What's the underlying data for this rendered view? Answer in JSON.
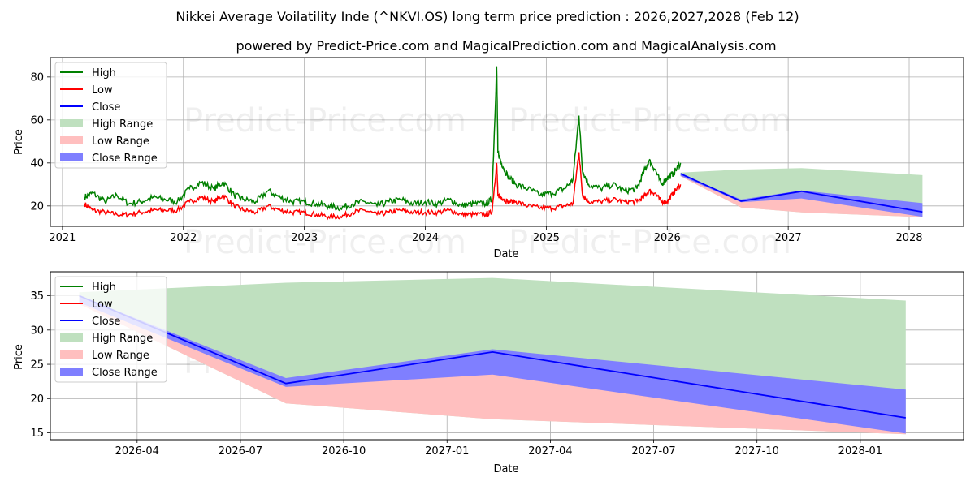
{
  "title": "Nikkei Average Voilatility Inde (^NKVI.OS) long term price prediction : 2026,2027,2028 (Feb 12)",
  "subtitle": "powered by Predict-Price.com and MagicalPrediction.com and MagicalAnalysis.com",
  "watermark": "Predict-Price.com",
  "colors": {
    "high": "#008000",
    "low": "#ff0000",
    "close": "#0000ff",
    "high_range": "#bfe0bf",
    "low_range": "#ffbfbf",
    "close_range": "#7f7fff"
  },
  "legend": {
    "high": "High",
    "low": "Low",
    "close": "Close",
    "high_range": "High Range",
    "low_range": "Low Range",
    "close_range": "Close Range"
  },
  "chart_data": [
    {
      "type": "line",
      "xlabel": "Date",
      "ylabel": "Price",
      "xlim": [
        2020.9,
        2028.45
      ],
      "ylim": [
        10.5,
        89
      ],
      "x_ticks": [
        2021,
        2022,
        2023,
        2024,
        2025,
        2026,
        2027,
        2028
      ],
      "x_tick_labels": [
        "2021",
        "2022",
        "2023",
        "2024",
        "2025",
        "2026",
        "2027",
        "2028"
      ],
      "y_ticks": [
        20,
        40,
        60,
        80
      ],
      "y_tick_labels": [
        "20",
        "40",
        "60",
        "80"
      ],
      "grid": true,
      "legend_position": "top-left",
      "history": {
        "x": [
          2021.18,
          2021.25,
          2021.35,
          2021.45,
          2021.55,
          2021.65,
          2021.75,
          2021.85,
          2021.95,
          2022.05,
          2022.15,
          2022.25,
          2022.33,
          2022.42,
          2022.5,
          2022.6,
          2022.7,
          2022.8,
          2022.9,
          2023.0,
          2023.1,
          2023.2,
          2023.3,
          2023.4,
          2023.5,
          2023.6,
          2023.7,
          2023.8,
          2023.9,
          2024.0,
          2024.1,
          2024.2,
          2024.3,
          2024.4,
          2024.5,
          2024.55,
          2024.59,
          2024.6,
          2024.63,
          2024.68,
          2024.75,
          2024.85,
          2024.95,
          2025.05,
          2025.15,
          2025.22,
          2025.27,
          2025.3,
          2025.35,
          2025.45,
          2025.55,
          2025.65,
          2025.75,
          2025.8,
          2025.85,
          2025.9,
          2025.95,
          2026.0,
          2026.05,
          2026.11
        ],
        "high": [
          24,
          26,
          22,
          25,
          21,
          22,
          24,
          23,
          22,
          28,
          31,
          28,
          31,
          25,
          23,
          22,
          27,
          24,
          22,
          22,
          21,
          20,
          19,
          21,
          22,
          20,
          22,
          23,
          21,
          22,
          21,
          23,
          20,
          21,
          21,
          23,
          85,
          45,
          40,
          34,
          30,
          28,
          25,
          26,
          28,
          32,
          62,
          36,
          30,
          28,
          30,
          27,
          28,
          35,
          41,
          37,
          30,
          33,
          35,
          40
        ],
        "low": [
          21,
          18,
          17,
          16,
          16,
          17,
          18,
          18,
          18,
          22,
          24,
          22,
          25,
          20,
          18,
          17,
          20,
          18,
          17,
          17,
          16,
          15,
          15,
          17,
          18,
          16,
          17,
          18,
          17,
          17,
          17,
          18,
          16,
          16,
          16,
          17,
          40,
          25,
          24,
          22,
          22,
          20,
          19,
          19,
          20,
          21,
          45,
          25,
          22,
          22,
          23,
          22,
          22,
          24,
          27,
          26,
          22,
          22,
          26,
          30
        ]
      },
      "forecast": {
        "x": [
          2026.11,
          2026.61,
          2027.11,
          2028.11
        ],
        "close": [
          35.0,
          22.2,
          26.8,
          17.2
        ],
        "high_range": [
          35.5,
          36.9,
          37.6,
          34.3
        ],
        "low_range": [
          33.8,
          19.3,
          17.0,
          14.8
        ],
        "close_range_upper": [
          35.0,
          23.0,
          27.2,
          21.3
        ],
        "close_range_lower": [
          34.0,
          21.7,
          23.5,
          14.9
        ]
      }
    },
    {
      "type": "line",
      "xlabel": "Date",
      "ylabel": "Price",
      "xlim": [
        2026.04,
        2028.25
      ],
      "ylim": [
        14.0,
        38.5
      ],
      "x_ticks": [
        2026.25,
        2026.5,
        2026.75,
        2027.0,
        2027.25,
        2027.5,
        2027.75,
        2028.0
      ],
      "x_tick_labels": [
        "2026-04",
        "2026-07",
        "2026-10",
        "2027-01",
        "2027-04",
        "2027-07",
        "2027-10",
        "2028-01"
      ],
      "y_ticks": [
        15,
        20,
        25,
        30,
        35
      ],
      "y_tick_labels": [
        "15",
        "20",
        "25",
        "30",
        "35"
      ],
      "grid": true,
      "legend_position": "top-left",
      "x": [
        2026.11,
        2026.61,
        2027.11,
        2028.11
      ],
      "close": [
        35.0,
        22.2,
        26.8,
        17.2
      ],
      "high_range": [
        35.5,
        36.9,
        37.6,
        34.3
      ],
      "low_range": [
        33.8,
        19.3,
        17.0,
        14.8
      ],
      "close_range_upper": [
        35.0,
        23.0,
        27.2,
        21.3
      ],
      "close_range_lower": [
        34.0,
        21.7,
        23.5,
        14.9
      ]
    }
  ]
}
